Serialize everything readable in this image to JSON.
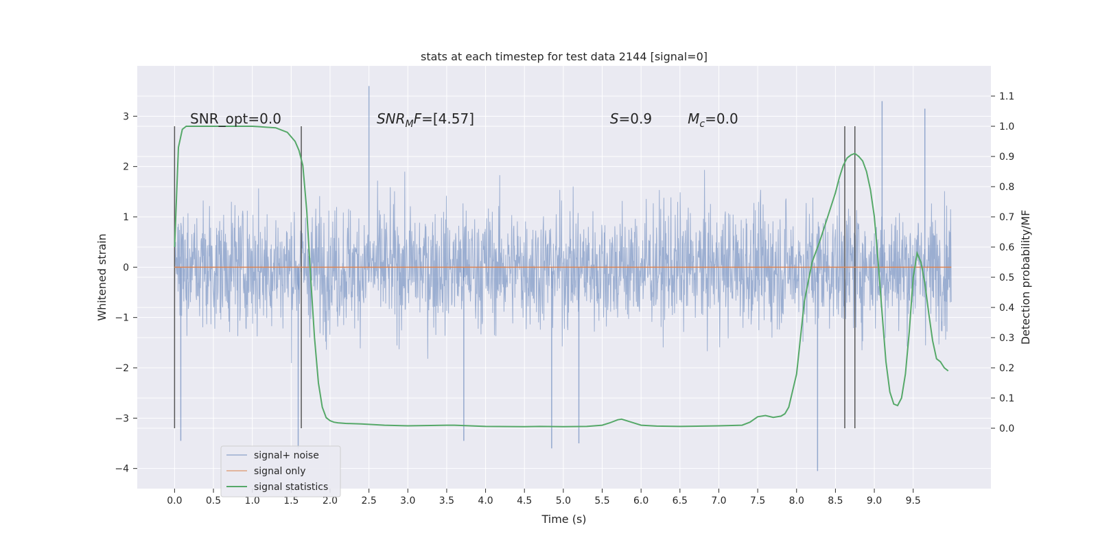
{
  "chart_data": {
    "type": "line",
    "title": "stats at each timestep for test data 2144 [signal=0]",
    "xlabel": "Time (s)",
    "ylabel": "Whitened strain",
    "ylabel_right": "Detection probability/MF",
    "xlim": [
      -0.48,
      10.5
    ],
    "ylim": [
      -4.4,
      4.0
    ],
    "ylim_right": [
      -0.2,
      1.2
    ],
    "x_ticks": [
      0.0,
      0.5,
      1.0,
      1.5,
      2.0,
      2.5,
      3.0,
      3.5,
      4.0,
      4.5,
      5.0,
      5.5,
      6.0,
      6.5,
      7.0,
      7.5,
      8.0,
      8.5,
      9.0,
      9.5
    ],
    "x_tick_labels": [
      "0.0",
      "0.5",
      "1.0",
      "1.5",
      "2.0",
      "2.5",
      "3.0",
      "3.5",
      "4.0",
      "4.5",
      "5.0",
      "5.5",
      "6.0",
      "6.5",
      "7.0",
      "7.5",
      "8.0",
      "8.5",
      "9.0",
      "9.5"
    ],
    "y_ticks": [
      -4,
      -3,
      -2,
      -1,
      0,
      1,
      2,
      3
    ],
    "y_tick_labels": [
      "−4",
      "−3",
      "−2",
      "−1",
      "0",
      "1",
      "2",
      "3"
    ],
    "y_right_ticks": [
      0.0,
      0.1,
      0.2,
      0.3,
      0.4,
      0.5,
      0.6,
      0.7,
      0.8,
      0.9,
      1.0,
      1.1
    ],
    "y_right_tick_labels": [
      "0.0",
      "0.1",
      "0.2",
      "0.3",
      "0.4",
      "0.5",
      "0.6",
      "0.7",
      "0.8",
      "0.9",
      "1.0",
      "1.1"
    ],
    "grid": true,
    "legend_position": "lower-left",
    "annotations": [
      {
        "text": "SNR_opt=0.0",
        "x": 0.2
      },
      {
        "main": "SNR",
        "sub": "M",
        "tail": "F=[4.57]",
        "x": 2.6
      },
      {
        "main": "S",
        "tail": "=0.9",
        "x": 5.6
      },
      {
        "main": "M",
        "sub": "c",
        "tail": "=0.0",
        "x": 6.6
      }
    ],
    "vlines": [
      {
        "x": 0.0,
        "ymin": -3.2,
        "ymax": 2.8
      },
      {
        "x": 1.63,
        "ymin": -3.2,
        "ymax": 2.8
      },
      {
        "x": 8.62,
        "ymin": -3.2,
        "ymax": 2.8
      },
      {
        "x": 8.75,
        "ymin": -3.2,
        "ymax": 2.8
      }
    ],
    "series": [
      {
        "name": "signal+ noise",
        "color": "#4c72b0",
        "axis": "left",
        "t_range": [
          0.0,
          9.99
        ],
        "noise_sigma": 0.85,
        "peak_points": [
          {
            "x": 0.08,
            "y": -3.45
          },
          {
            "x": 1.59,
            "y": -3.6
          },
          {
            "x": 2.5,
            "y": 3.6
          },
          {
            "x": 3.72,
            "y": -3.45
          },
          {
            "x": 4.85,
            "y": -3.6
          },
          {
            "x": 5.2,
            "y": -3.5
          },
          {
            "x": 8.27,
            "y": -4.05
          },
          {
            "x": 9.1,
            "y": 3.3
          },
          {
            "x": 9.65,
            "y": 3.15
          }
        ]
      },
      {
        "name": "signal only",
        "color": "#dd8452",
        "axis": "left",
        "x": [
          0.0,
          9.99
        ],
        "y": [
          0.0,
          0.0
        ]
      },
      {
        "name": "signal statistics",
        "color": "#55a868",
        "axis": "right",
        "x": [
          0.0,
          0.05,
          0.1,
          0.15,
          0.25,
          0.5,
          1.0,
          1.3,
          1.45,
          1.55,
          1.6,
          1.65,
          1.7,
          1.75,
          1.8,
          1.85,
          1.9,
          1.95,
          2.0,
          2.05,
          2.1,
          2.2,
          2.4,
          2.7,
          3.0,
          3.5,
          3.6,
          4.0,
          4.5,
          4.7,
          5.0,
          5.3,
          5.5,
          5.6,
          5.7,
          5.75,
          5.85,
          6.0,
          6.2,
          6.5,
          7.0,
          7.3,
          7.4,
          7.5,
          7.6,
          7.7,
          7.8,
          7.85,
          7.9,
          8.0,
          8.1,
          8.2,
          8.3,
          8.4,
          8.5,
          8.55,
          8.6,
          8.65,
          8.7,
          8.75,
          8.8,
          8.85,
          8.9,
          8.95,
          9.0,
          9.05,
          9.1,
          9.15,
          9.2,
          9.25,
          9.3,
          9.35,
          9.4,
          9.45,
          9.5,
          9.55,
          9.6,
          9.65,
          9.7,
          9.75,
          9.8,
          9.85,
          9.9,
          9.95
        ],
        "y": [
          0.6,
          0.93,
          0.99,
          1.0,
          1.0,
          1.0,
          1.0,
          0.995,
          0.98,
          0.95,
          0.92,
          0.87,
          0.72,
          0.5,
          0.3,
          0.15,
          0.07,
          0.035,
          0.025,
          0.02,
          0.018,
          0.016,
          0.014,
          0.01,
          0.008,
          0.01,
          0.01,
          0.006,
          0.005,
          0.006,
          0.005,
          0.006,
          0.01,
          0.018,
          0.028,
          0.03,
          0.022,
          0.01,
          0.007,
          0.006,
          0.008,
          0.01,
          0.02,
          0.038,
          0.042,
          0.036,
          0.04,
          0.048,
          0.07,
          0.18,
          0.42,
          0.55,
          0.62,
          0.7,
          0.78,
          0.83,
          0.87,
          0.895,
          0.905,
          0.91,
          0.9,
          0.885,
          0.85,
          0.79,
          0.7,
          0.55,
          0.38,
          0.22,
          0.12,
          0.08,
          0.075,
          0.1,
          0.18,
          0.32,
          0.5,
          0.58,
          0.55,
          0.48,
          0.38,
          0.29,
          0.23,
          0.22,
          0.2,
          0.19
        ]
      }
    ]
  }
}
